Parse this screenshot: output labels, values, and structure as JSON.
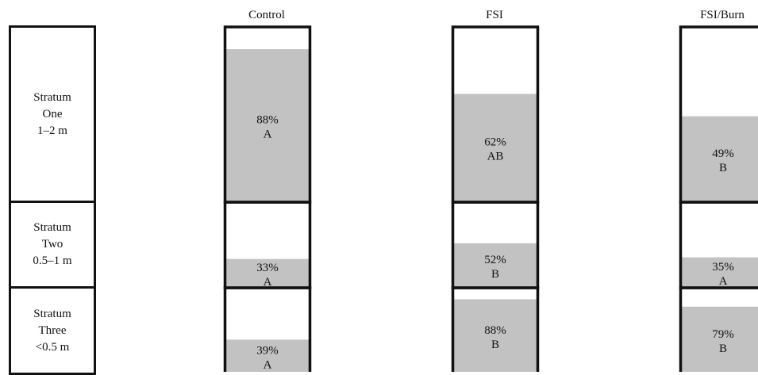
{
  "chart_data": {
    "type": "bar",
    "description_labels": true,
    "categories": [
      "Control",
      "FSI",
      "FSI/Burn"
    ],
    "strata": [
      {
        "lines": [
          "Stratum",
          "One",
          "1–2 m"
        ]
      },
      {
        "lines": [
          "Stratum",
          "Two",
          "0.5–1 m"
        ]
      },
      {
        "lines": [
          "Stratum",
          "Three",
          "<0.5 m"
        ]
      }
    ],
    "series": [
      {
        "values": [
          88,
          62,
          49
        ],
        "letters": [
          "A",
          "AB",
          "B"
        ]
      },
      {
        "values": [
          33,
          52,
          35
        ],
        "letters": [
          "A",
          "B",
          "A"
        ]
      },
      {
        "values": [
          39,
          88,
          79
        ],
        "letters": [
          "A",
          "B",
          "B"
        ]
      }
    ],
    "ylim": [
      0,
      100
    ],
    "unit": "%",
    "fill_color": "#c2c2c2",
    "border_color": "#111111"
  }
}
